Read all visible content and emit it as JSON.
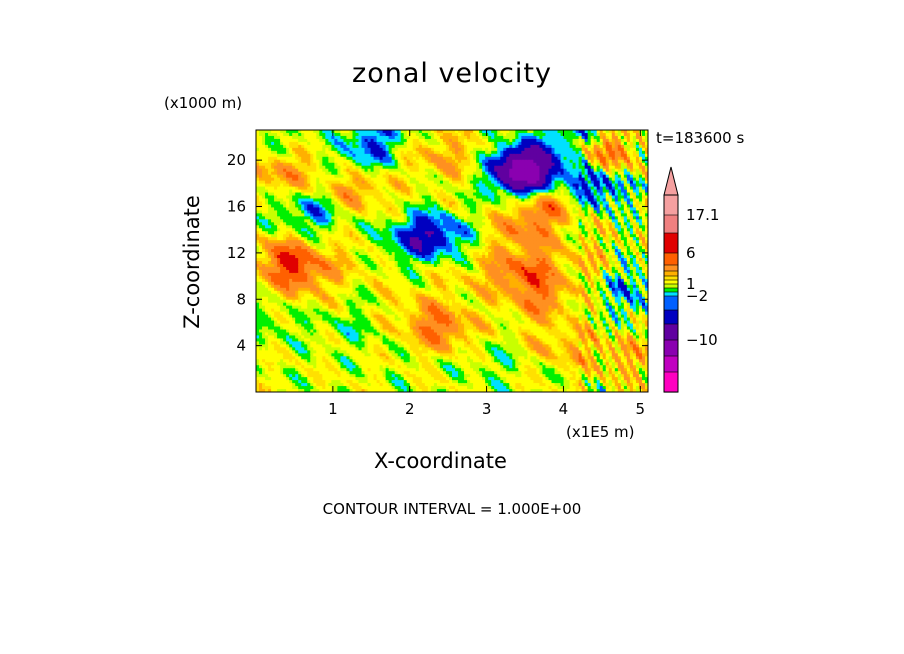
{
  "chart_data": {
    "type": "heatmap",
    "title": "zonal velocity",
    "xlabel": "X-coordinate",
    "ylabel": "Z-coordinate",
    "x_multiplier": "(x1E5 m)",
    "y_multiplier": "(x1000 m)",
    "time_label": "t=183600 s",
    "footer": "CONTOUR INTERVAL = 1.000E+00",
    "xlim": [
      0,
      5.1
    ],
    "ylim": [
      0,
      22.6
    ],
    "x_ticks": [
      1,
      2,
      3,
      4,
      5
    ],
    "y_ticks": [
      4,
      8,
      12,
      16,
      20
    ],
    "colorbar": {
      "labels": [
        "17.1",
        "6",
        "1",
        "−2",
        "−10"
      ],
      "colors_top_to_bottom": [
        "#f5a0a0",
        "#f08080",
        "#e00000",
        "#ff6000",
        "#ff9020",
        "#ffb000",
        "#ffe000",
        "#ffff00",
        "#c8ff00",
        "#00f000",
        "#00e0ff",
        "#0060ff",
        "#0000c0",
        "#6000a0",
        "#8a00b0",
        "#c000c0",
        "#ff00c0"
      ]
    },
    "features": [
      {
        "x": 0.35,
        "z": 19.0,
        "value": 3
      },
      {
        "x": 1.3,
        "z": 17.5,
        "value": 3
      },
      {
        "x": 1.35,
        "z": 20.0,
        "value": -2
      },
      {
        "x": 0.7,
        "z": 15.5,
        "value": -3
      },
      {
        "x": 2.3,
        "z": 13.5,
        "value": -5
      },
      {
        "x": 1.95,
        "z": 13.0,
        "value": -2
      },
      {
        "x": 0.4,
        "z": 11.5,
        "value": 4
      },
      {
        "x": 0.6,
        "z": 10.0,
        "value": 3
      },
      {
        "x": 1.3,
        "z": 11.5,
        "value": 1
      },
      {
        "x": 2.4,
        "z": 5.5,
        "value": 4
      },
      {
        "x": 2.1,
        "z": 7.5,
        "value": 1
      },
      {
        "x": 1.2,
        "z": 5.5,
        "value": -1
      },
      {
        "x": 3.1,
        "z": 2.5,
        "value": -1
      },
      {
        "x": 2.8,
        "z": 10.0,
        "value": 1
      },
      {
        "x": 3.5,
        "z": 18.5,
        "value": -6
      },
      {
        "x": 3.5,
        "z": 19.5,
        "value": -8
      },
      {
        "x": 3.8,
        "z": 16.5,
        "value": 4
      },
      {
        "x": 3.5,
        "z": 14.0,
        "value": 3
      },
      {
        "x": 4.4,
        "z": 17.8,
        "value": -5
      },
      {
        "x": 4.55,
        "z": 20.5,
        "value": 4
      },
      {
        "x": 3.5,
        "z": 10.5,
        "value": 4
      },
      {
        "x": 3.7,
        "z": 8.0,
        "value": 3
      },
      {
        "x": 4.4,
        "z": 11.0,
        "value": 2
      },
      {
        "x": 4.7,
        "z": 10.0,
        "value": -2
      },
      {
        "x": 5.0,
        "z": 8.0,
        "value": -2
      },
      {
        "x": 2.3,
        "z": 20.5,
        "value": 2
      },
      {
        "x": 4.0,
        "z": 4.0,
        "value": 2
      },
      {
        "x": 4.8,
        "z": 3.0,
        "value": 2
      },
      {
        "x": 0.2,
        "z": 6.0,
        "value": -1
      },
      {
        "x": 0.25,
        "z": 21.5,
        "value": -1
      },
      {
        "x": 2.8,
        "z": 20.0,
        "value": 1
      },
      {
        "x": 1.6,
        "z": 22.0,
        "value": -3
      },
      {
        "x": 4.1,
        "z": 22.2,
        "value": -3
      }
    ]
  }
}
